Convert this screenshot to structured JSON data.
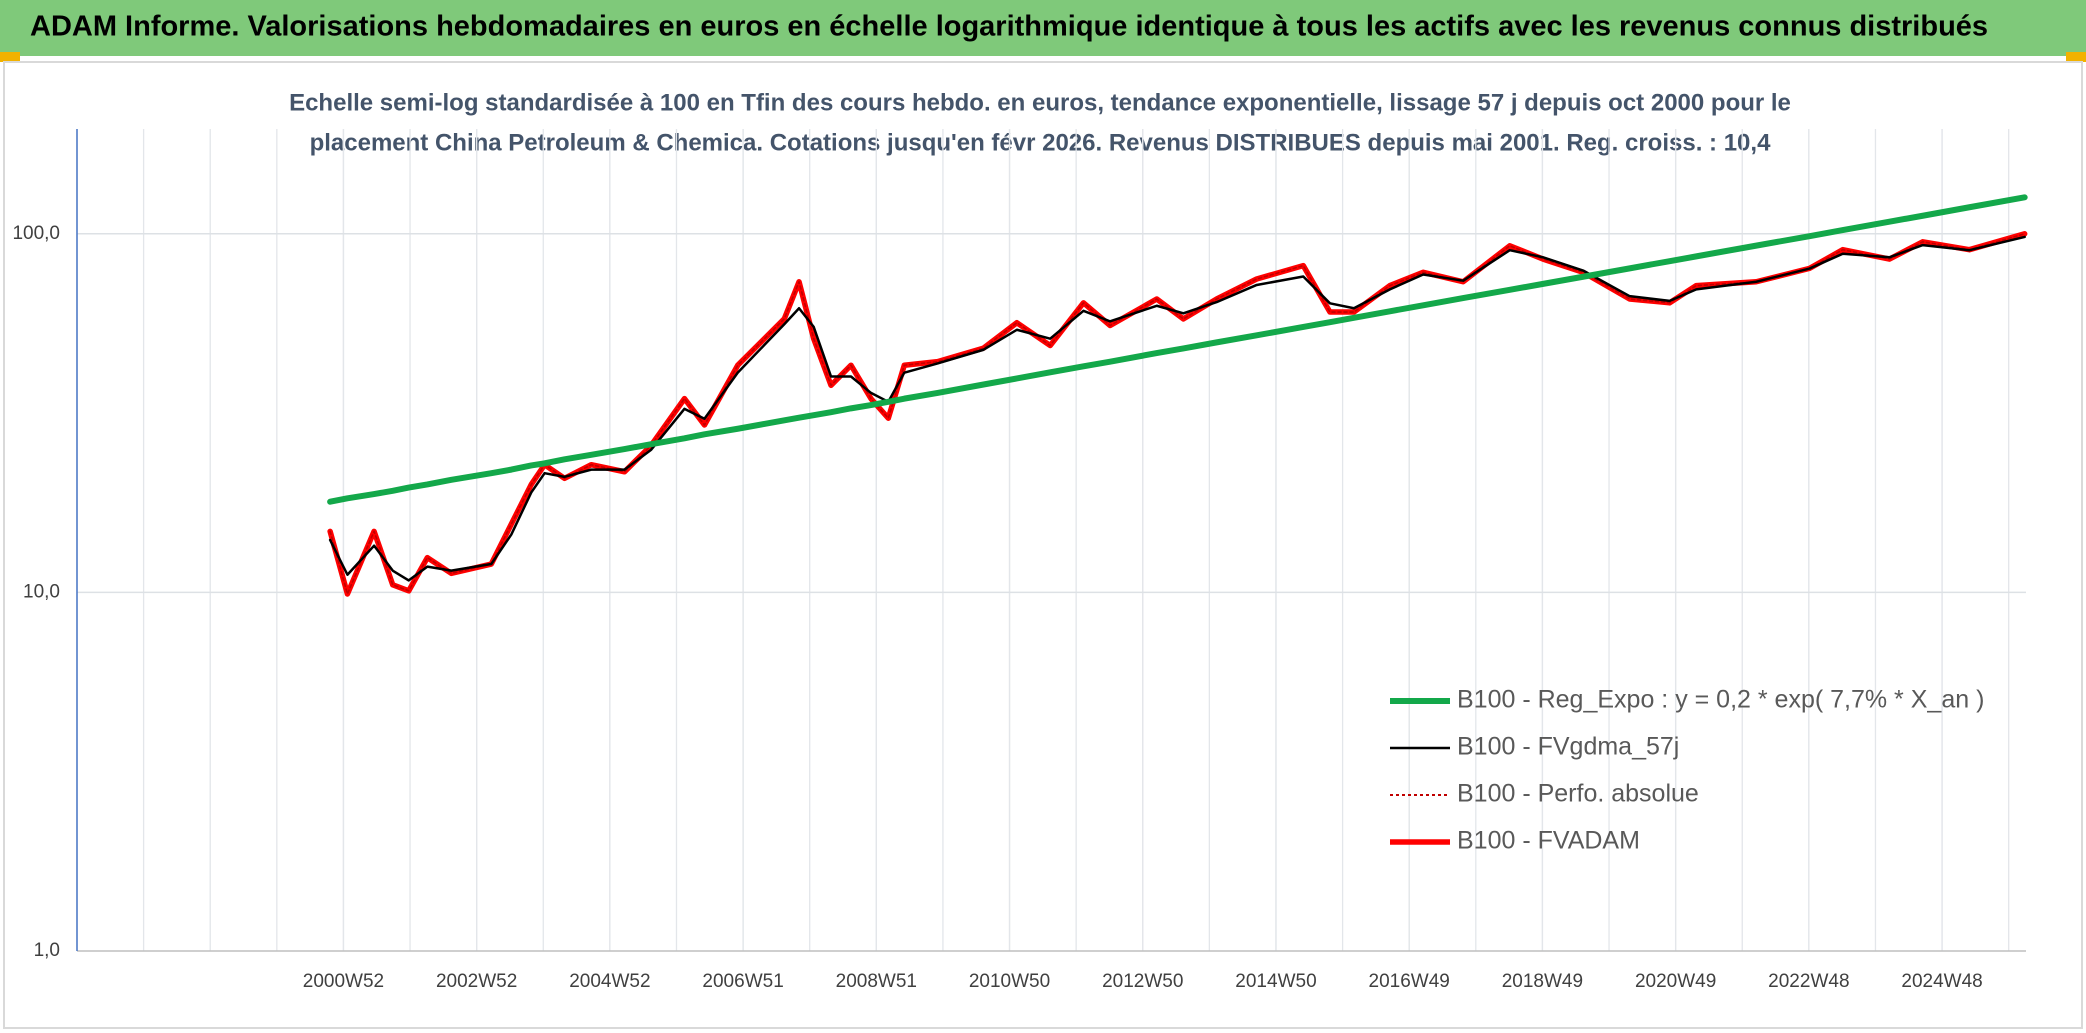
{
  "chart_data": {
    "type": "line",
    "title": "ADAM Informe. Valorisations hebdomadaires en euros en échelle logarithmique identique à tous les actifs avec les revenus connus distribués",
    "subtitle": [
      "Echelle semi-log standardisée à 100 en Tfin des cours hebdo. en euros, tendance exponentielle, lissage 57 j depuis oct 2000 pour le",
      "placement China Petroleum & Chemica. Cotations jusqu'en févr 2026. Revenus DISTRIBUES depuis mai 2001. Reg. croiss. : 10,4"
    ],
    "y_scale": "log",
    "grid": true,
    "legend_position": "right",
    "xlim": [
      1997,
      2026.26
    ],
    "ylim": [
      1,
      196
    ],
    "yticks": [
      {
        "value": 1,
        "label": "1,0"
      },
      {
        "value": 10,
        "label": "10,0"
      },
      {
        "value": 100,
        "label": "100,0"
      }
    ],
    "xticks": [
      {
        "value": 2001,
        "label": "2000W52"
      },
      {
        "value": 2003,
        "label": "2002W52"
      },
      {
        "value": 2005,
        "label": "2004W52"
      },
      {
        "value": 2007,
        "label": "2006W51"
      },
      {
        "value": 2009,
        "label": "2008W51"
      },
      {
        "value": 2011,
        "label": "2010W50"
      },
      {
        "value": 2013,
        "label": "2012W50"
      },
      {
        "value": 2015,
        "label": "2014W50"
      },
      {
        "value": 2017,
        "label": "2016W49"
      },
      {
        "value": 2019,
        "label": "2018W49"
      },
      {
        "value": 2021,
        "label": "2020W49"
      },
      {
        "value": 2023,
        "label": "2022W48"
      },
      {
        "value": 2025,
        "label": "2024W48"
      }
    ],
    "x": [
      2000.8,
      2001.06,
      2001.46,
      2001.74,
      2001.98,
      2002.26,
      2002.62,
      2003.22,
      2003.52,
      2003.82,
      2004.02,
      2004.32,
      2004.72,
      2005.22,
      2005.62,
      2006.12,
      2006.42,
      2006.92,
      2007.32,
      2007.62,
      2007.84,
      2008.06,
      2008.32,
      2008.62,
      2008.92,
      2009.18,
      2009.42,
      2009.92,
      2010.61,
      2011.11,
      2011.61,
      2012.11,
      2012.51,
      2013.21,
      2013.61,
      2014.11,
      2014.71,
      2015.41,
      2015.81,
      2016.17,
      2016.71,
      2017.21,
      2017.81,
      2018.51,
      2019.01,
      2019.61,
      2020.31,
      2020.91,
      2021.31,
      2022.21,
      2023.01,
      2023.51,
      2024.21,
      2024.71,
      2025.41,
      2026.24
    ],
    "series": [
      {
        "name": "B100 - Reg_Expo : y = 0,2 * exp( 7,7% *  X_an )",
        "color": "#13a84a",
        "line_style": "solid",
        "values": [
          17.9,
          18.3,
          18.8,
          19.2,
          19.6,
          20.0,
          20.6,
          21.5,
          22.0,
          22.6,
          22.9,
          23.5,
          24.2,
          25.1,
          25.9,
          26.9,
          27.6,
          28.6,
          29.5,
          30.2,
          30.7,
          31.2,
          31.8,
          32.6,
          33.3,
          34.0,
          34.7,
          36.0,
          38.0,
          39.5,
          41.1,
          42.7,
          44.0,
          46.5,
          47.9,
          49.8,
          52.1,
          55.0,
          56.7,
          58.3,
          60.8,
          63.2,
          66.2,
          69.8,
          72.5,
          75.9,
          80.1,
          83.9,
          86.5,
          92.7,
          98.5,
          102.4,
          108.1,
          112.3,
          118.6,
          126.4
        ]
      },
      {
        "name": "B100 - FVgdma_57j",
        "color": "#000000",
        "line_style": "solid",
        "values": [
          14.0,
          11.2,
          13.5,
          11.5,
          10.8,
          11.8,
          11.5,
          12.0,
          14.5,
          19.0,
          21.5,
          21.0,
          22.0,
          22.0,
          25.0,
          32.5,
          30.5,
          41.0,
          49.0,
          56.0,
          62.0,
          55.0,
          40.0,
          40.0,
          36.0,
          34.0,
          41.0,
          43.5,
          47.5,
          54.0,
          51.0,
          61.0,
          57.0,
          63.0,
          60.0,
          64.5,
          72.0,
          76.0,
          64.0,
          62.0,
          70.0,
          77.0,
          74.0,
          90.0,
          86.0,
          79.0,
          67.0,
          65.0,
          70.0,
          73.5,
          80.0,
          88.0,
          86.0,
          93.0,
          90.0,
          98.0
        ]
      },
      {
        "name": "B100 - Perfo. absolue",
        "color": "#c00000",
        "line_style": "dotted",
        "values": [
          14.8,
          9.9,
          14.8,
          10.5,
          10.1,
          12.5,
          11.3,
          12.0,
          15.5,
          20.0,
          22.7,
          20.8,
          22.7,
          21.7,
          25.7,
          34.7,
          29.3,
          43.0,
          51.0,
          58.0,
          73.5,
          51.0,
          37.8,
          43.0,
          34.7,
          30.6,
          43.0,
          44.0,
          48.0,
          56.5,
          48.8,
          64.2,
          55.5,
          65.8,
          57.9,
          65.8,
          74.8,
          81.5,
          60.5,
          60.5,
          71.7,
          78.1,
          73.5,
          92.6,
          85.0,
          78.1,
          65.8,
          64.2,
          71.7,
          73.5,
          80.1,
          90.3,
          85.0,
          95.0,
          90.3,
          100
        ]
      },
      {
        "name": "B100 - FVADAM",
        "color": "#ff0000",
        "line_style": "solid",
        "values": [
          14.8,
          9.9,
          14.8,
          10.5,
          10.1,
          12.5,
          11.3,
          12.0,
          15.5,
          20.0,
          22.7,
          20.8,
          22.7,
          21.7,
          25.7,
          34.7,
          29.3,
          43.0,
          51.0,
          58.0,
          73.5,
          51.0,
          37.8,
          43.0,
          34.7,
          30.6,
          43.0,
          44.0,
          48.0,
          56.5,
          48.8,
          64.2,
          55.5,
          65.8,
          57.9,
          65.8,
          74.8,
          81.5,
          60.5,
          60.5,
          71.7,
          78.1,
          73.5,
          92.6,
          85.0,
          78.1,
          65.8,
          64.2,
          71.7,
          73.5,
          80.1,
          90.3,
          85.0,
          95.0,
          90.3,
          100
        ]
      }
    ]
  }
}
